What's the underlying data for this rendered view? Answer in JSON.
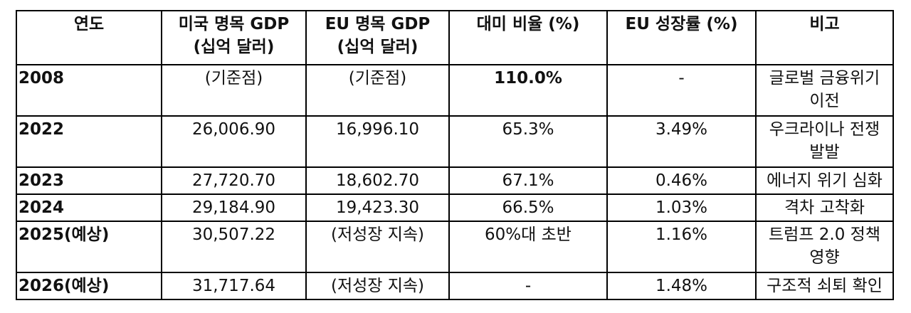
{
  "table": {
    "headers": [
      {
        "line1": "연도",
        "line2": ""
      },
      {
        "line1": "미국 명목 GDP",
        "line2": "(십억 달러)"
      },
      {
        "line1": "EU 명목 GDP",
        "line2": "(십억 달러)"
      },
      {
        "line1": "대미 비율 (%)",
        "line2": ""
      },
      {
        "line1": "EU 성장률 (%)",
        "line2": ""
      },
      {
        "line1": "비고",
        "line2": ""
      }
    ],
    "rows": [
      {
        "year": "2008",
        "us_gdp": "(기준점)",
        "eu_gdp": "(기준점)",
        "ratio": "110.0%",
        "growth": "-",
        "note": "글로벌 금융위기 이전"
      },
      {
        "year": "2022",
        "us_gdp": "26,006.90",
        "eu_gdp": "16,996.10",
        "ratio": "65.3%",
        "growth": "3.49%",
        "note": "우크라이나 전쟁 발발"
      },
      {
        "year": "2023",
        "us_gdp": "27,720.70",
        "eu_gdp": "18,602.70",
        "ratio": "67.1%",
        "growth": "0.46%",
        "note": "에너지 위기 심화"
      },
      {
        "year": "2024",
        "us_gdp": "29,184.90",
        "eu_gdp": "19,423.30",
        "ratio": "66.5%",
        "growth": "1.03%",
        "note": "격차 고착화"
      },
      {
        "year": "2025(예상)",
        "us_gdp": "30,507.22",
        "eu_gdp": "(저성장 지속)",
        "ratio": "60%대 초반",
        "growth": "1.16%",
        "note": "트럼프 2.0 정책 영향"
      },
      {
        "year": "2026(예상)",
        "us_gdp": "31,717.64",
        "eu_gdp": "(저성장 지속)",
        "ratio": "-",
        "growth": "1.48%",
        "note": "구조적 쇠퇴 확인"
      }
    ]
  }
}
